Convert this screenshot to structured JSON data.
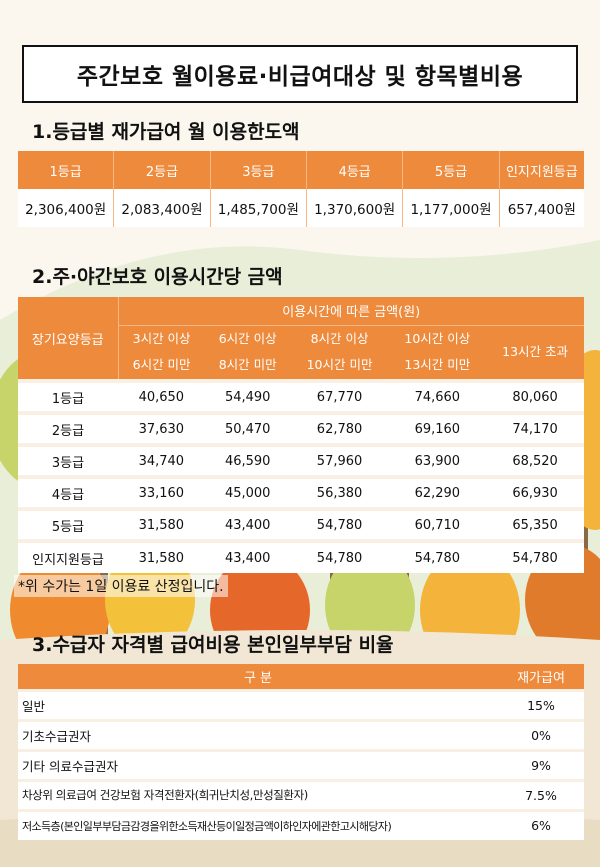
{
  "title": "주간보호 월이용료·비급여대상 및 항목별비용",
  "section1": {
    "title": "1.등급별 재가급여 월 이용한도액",
    "headers": [
      "1등급",
      "2등급",
      "3등급",
      "4등급",
      "5등급",
      "인지지원등급"
    ],
    "values": [
      "2,306,400원",
      "2,083,400원",
      "1,485,700원",
      "1,370,600원",
      "1,177,000원",
      "657,400원"
    ]
  },
  "section2": {
    "title": "2.주·야간보호 이용시간당 금액",
    "grade_header": "장기요양등급",
    "group_header": "이용시간에 따른 금액(원)",
    "time_headers": [
      {
        "line1": "3시간 이상",
        "line2": "6시간 미만"
      },
      {
        "line1": "6시간 이상",
        "line2": "8시간 미만"
      },
      {
        "line1": "8시간 이상",
        "line2": "10시간 미만"
      },
      {
        "line1": "10시간 이상",
        "line2": "13시간 미만"
      },
      {
        "line1": "13시간 초과",
        "line2": ""
      }
    ],
    "rows": [
      {
        "grade": "1등급",
        "values": [
          "40,650",
          "54,490",
          "67,770",
          "74,660",
          "80,060"
        ]
      },
      {
        "grade": "2등급",
        "values": [
          "37,630",
          "50,470",
          "62,780",
          "69,160",
          "74,170"
        ]
      },
      {
        "grade": "3등급",
        "values": [
          "34,740",
          "46,590",
          "57,960",
          "63,900",
          "68,520"
        ]
      },
      {
        "grade": "4등급",
        "values": [
          "33,160",
          "45,000",
          "56,380",
          "62,290",
          "66,930"
        ]
      },
      {
        "grade": "5등급",
        "values": [
          "31,580",
          "43,400",
          "54,780",
          "60,710",
          "65,350"
        ]
      },
      {
        "grade": "인지지원등급",
        "values": [
          "31,580",
          "43,400",
          "54,780",
          "54,780",
          "54,780"
        ]
      }
    ],
    "note": "*위 수가는 1일 이용료 산정입니다."
  },
  "section3": {
    "title": "3.수급자 자격별 급여비용 본인일부부담 비율",
    "header_category": "구 분",
    "header_rate": "재가급여",
    "rows": [
      {
        "label": "일반",
        "rate": "15%"
      },
      {
        "label": "기초수급권자",
        "rate": "0%"
      },
      {
        "label": "기타 의료수급권자",
        "rate": "9%"
      },
      {
        "label": "차상위 의료급여 건강보험 자격전환자(희귀난치성,만성질환자)",
        "rate": "7.5%"
      },
      {
        "label": "저소득층(본인일부부담금감경을위한소득재산등이일정금액이하인자에관한고시해당자)",
        "rate": "6%"
      }
    ]
  },
  "colors": {
    "header_orange": "#ee8a3c",
    "tree_orange": "#f08a2e",
    "tree_yellow": "#f4c13a",
    "tree_green": "#9bbf3a",
    "ground": "#f1e7d4"
  }
}
